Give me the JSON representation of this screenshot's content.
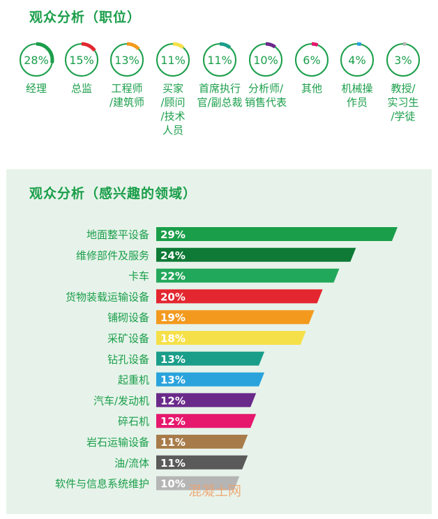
{
  "position_section": {
    "title": "观众分析（职位）",
    "items": [
      {
        "percent": "28%",
        "value": 28,
        "label": "经理",
        "color": "#1a9e4a"
      },
      {
        "percent": "15%",
        "value": 15,
        "label": "总监",
        "color": "#e3262f"
      },
      {
        "percent": "13%",
        "value": 13,
        "label": "工程师\n/建筑师",
        "color": "#f39a1e"
      },
      {
        "percent": "11%",
        "value": 11,
        "label": "买家\n/顾问\n/技术\n人员",
        "color": "#f6e04a"
      },
      {
        "percent": "11%",
        "value": 11,
        "label": "首席执行\n官/副总裁",
        "color": "#1a9e8a"
      },
      {
        "percent": "10%",
        "value": 10,
        "label": "分析师/\n销售代表",
        "color": "#6a2a8a"
      },
      {
        "percent": "6%",
        "value": 6,
        "label": "其他",
        "color": "#e6186e"
      },
      {
        "percent": "4%",
        "value": 4,
        "label": "机械操\n作员",
        "color": "#2aa3dc"
      },
      {
        "percent": "3%",
        "value": 3,
        "label": "教授/\n实习生\n/学徒",
        "color": "#b5b5b5"
      }
    ]
  },
  "chart_data": {
    "type": "bar",
    "title": "观众分析（感兴趣的领域）",
    "categories": [
      "地面整平设备",
      "维修部件及服务",
      "卡车",
      "货物装载运输设备",
      "铺砌设备",
      "采矿设备",
      "钻孔设备",
      "起重机",
      "汽车/发动机",
      "碎石机",
      "岩石运输设备",
      "油/流体",
      "软件与信息系统维护"
    ],
    "values": [
      29,
      24,
      22,
      20,
      19,
      18,
      13,
      13,
      12,
      12,
      11,
      11,
      10
    ],
    "value_labels": [
      "29%",
      "24%",
      "22%",
      "20%",
      "19%",
      "18%",
      "13%",
      "13%",
      "12%",
      "12%",
      "11%",
      "11%",
      "10%"
    ],
    "colors": [
      "#1a9e4a",
      "#0f7a35",
      "#22a85a",
      "#e3262f",
      "#f39a1e",
      "#f6e04a",
      "#1a9e8a",
      "#2aa3dc",
      "#6a2a8a",
      "#e6186e",
      "#a87c4a",
      "#5a5a5a",
      "#b5b5b5"
    ],
    "xlim": [
      0,
      29
    ]
  },
  "watermark": "混凝土网"
}
